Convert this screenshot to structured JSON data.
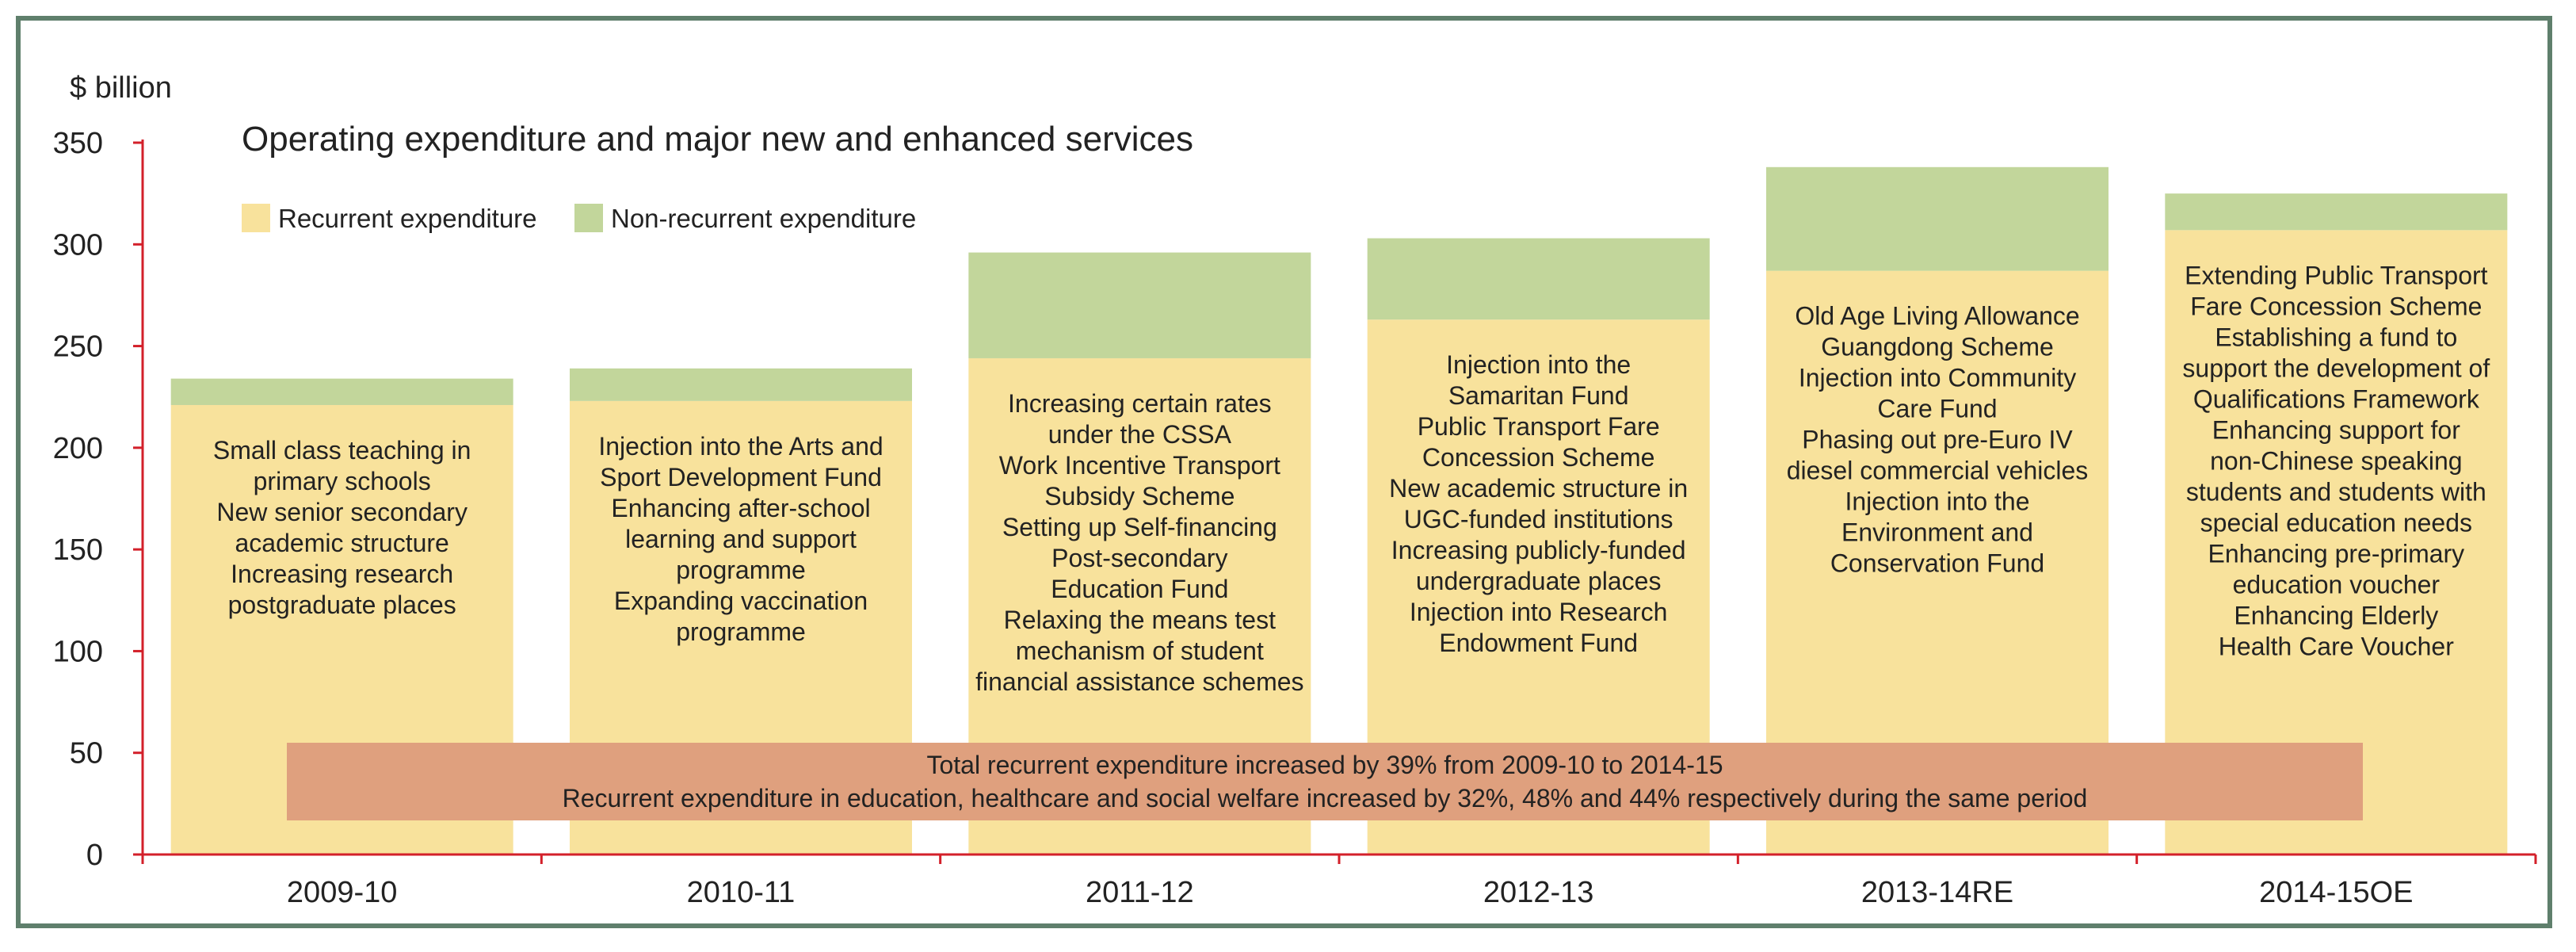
{
  "chart_data": {
    "type": "bar",
    "stacked": true,
    "title": "Operating expenditure and major new and enhanced services",
    "ylabel": "$ billion",
    "ylim": [
      0,
      350
    ],
    "yticks": [
      0,
      50,
      100,
      150,
      200,
      250,
      300,
      350
    ],
    "categories": [
      "2009-10",
      "2010-11",
      "2011-12",
      "2012-13",
      "2013-14RE",
      "2014-15OE"
    ],
    "series": [
      {
        "name": "Recurrent expenditure",
        "color": "#f8e29c",
        "values": [
          221,
          223,
          244,
          263,
          287,
          307
        ]
      },
      {
        "name": "Non-recurrent expenditure",
        "color": "#c2d69b",
        "values": [
          13,
          16,
          52,
          40,
          51,
          18
        ]
      }
    ],
    "legend_position": "top-left",
    "bar_annotations": [
      [
        "Small class teaching in",
        "primary schools",
        "New senior secondary",
        "academic structure",
        "Increasing research",
        "postgraduate places"
      ],
      [
        "Injection into the Arts and",
        "Sport Development Fund",
        "Enhancing after-school",
        "learning and support",
        "programme",
        "Expanding vaccination",
        "programme"
      ],
      [
        "Increasing certain rates",
        "under the CSSA",
        "Work Incentive Transport",
        "Subsidy Scheme",
        "Setting up Self-financing",
        "Post-secondary",
        "Education Fund",
        "Relaxing the means test",
        "mechanism of student",
        "financial assistance schemes"
      ],
      [
        "Injection into the",
        "Samaritan Fund",
        "Public Transport Fare",
        "Concession Scheme",
        "New academic structure in",
        "UGC-funded institutions",
        "Increasing publicly-funded",
        "undergraduate places",
        "Injection into Research",
        "Endowment Fund"
      ],
      [
        "Old Age Living Allowance",
        "Guangdong Scheme",
        "Injection into Community",
        "Care Fund",
        "Phasing out pre-Euro IV",
        "diesel commercial vehicles",
        "Injection into the",
        "Environment and",
        "Conservation Fund"
      ],
      [
        "Extending Public Transport",
        "Fare Concession Scheme",
        "Establishing a fund to",
        "support the development of",
        "Qualifications Framework",
        "Enhancing support for",
        "non-Chinese speaking",
        "students and students with",
        "special education needs",
        "Enhancing pre-primary",
        "education voucher",
        "Enhancing Elderly",
        "Health Care Voucher"
      ]
    ],
    "banner": {
      "lines": [
        "Total recurrent expenditure increased by 39% from 2009-10 to 2014-15",
        "Recurrent expenditure in education, healthcare and social welfare increased by 32%, 48% and 44% respectively during the same period"
      ],
      "color": "#dfa07e"
    },
    "axis_color": "#d3202a",
    "grid": false
  }
}
